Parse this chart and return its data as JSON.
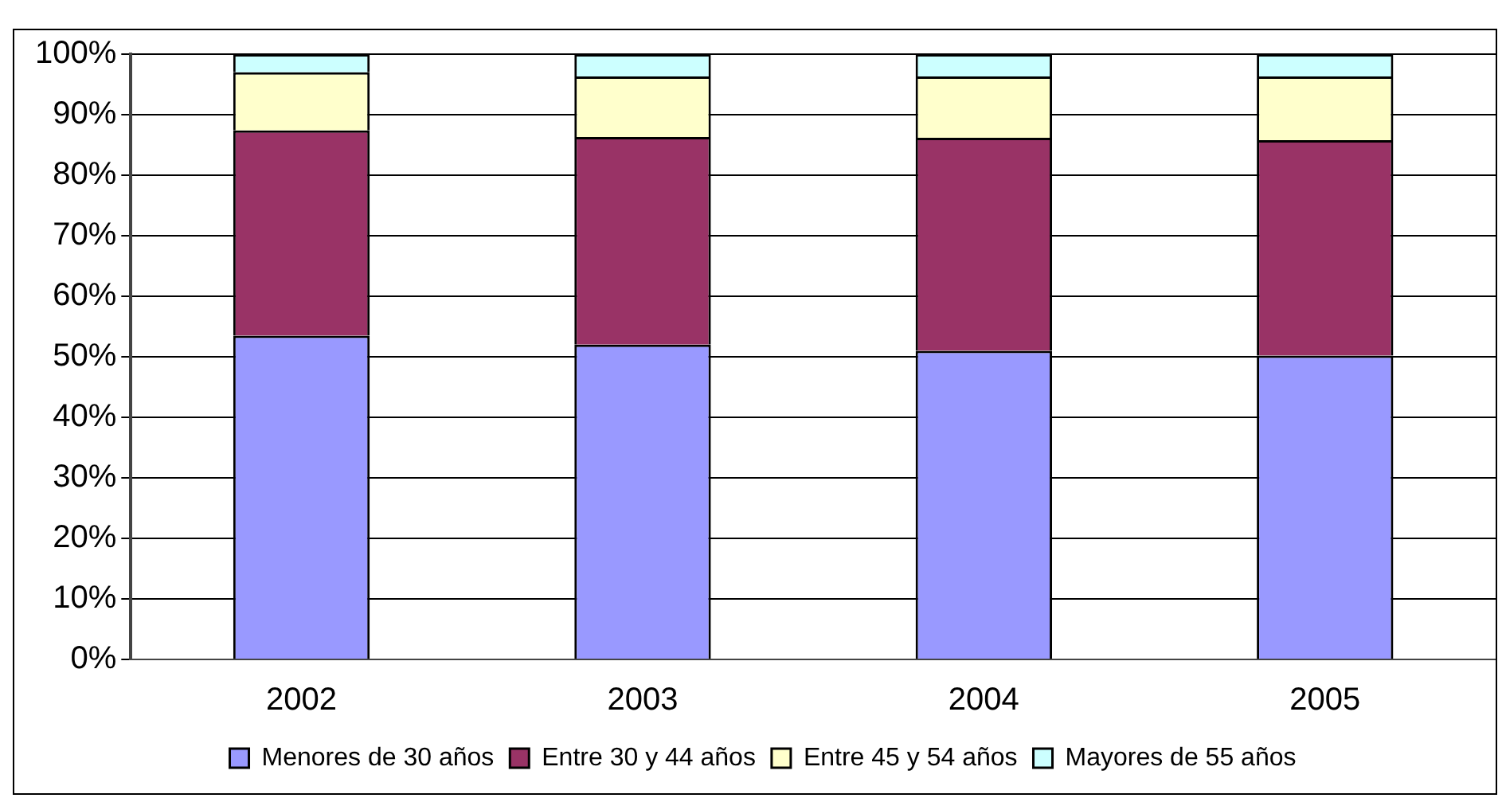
{
  "chart_data": {
    "type": "bar",
    "stacked": true,
    "categories": [
      "2002",
      "2003",
      "2004",
      "2005"
    ],
    "series": [
      {
        "name": "Menores de 30 años",
        "color": "#9999ff",
        "values": [
          53.5,
          52,
          51,
          50.2
        ]
      },
      {
        "name": "Entre 30 y 44 años",
        "color": "#993366",
        "values": [
          33.9,
          34.3,
          35.2,
          35.6
        ]
      },
      {
        "name": "Entre 45 y 54 años",
        "color": "#ffffcc",
        "values": [
          9.6,
          10,
          10.1,
          10.5
        ]
      },
      {
        "name": "Mayores de 55 años",
        "color": "#ccffff",
        "values": [
          3,
          3.7,
          3.7,
          3.7
        ]
      }
    ],
    "ylim": [
      0,
      100
    ],
    "yticks": [
      {
        "value": 0,
        "label": "0%"
      },
      {
        "value": 10,
        "label": "10%"
      },
      {
        "value": 20,
        "label": "20%"
      },
      {
        "value": 30,
        "label": "30%"
      },
      {
        "value": 40,
        "label": "40%"
      },
      {
        "value": 50,
        "label": "50%"
      },
      {
        "value": 60,
        "label": "60%"
      },
      {
        "value": 70,
        "label": "70%"
      },
      {
        "value": 80,
        "label": "80%"
      },
      {
        "value": 90,
        "label": "90%"
      },
      {
        "value": 100,
        "label": "100%"
      }
    ],
    "grid": "y",
    "legend": "bottom"
  }
}
